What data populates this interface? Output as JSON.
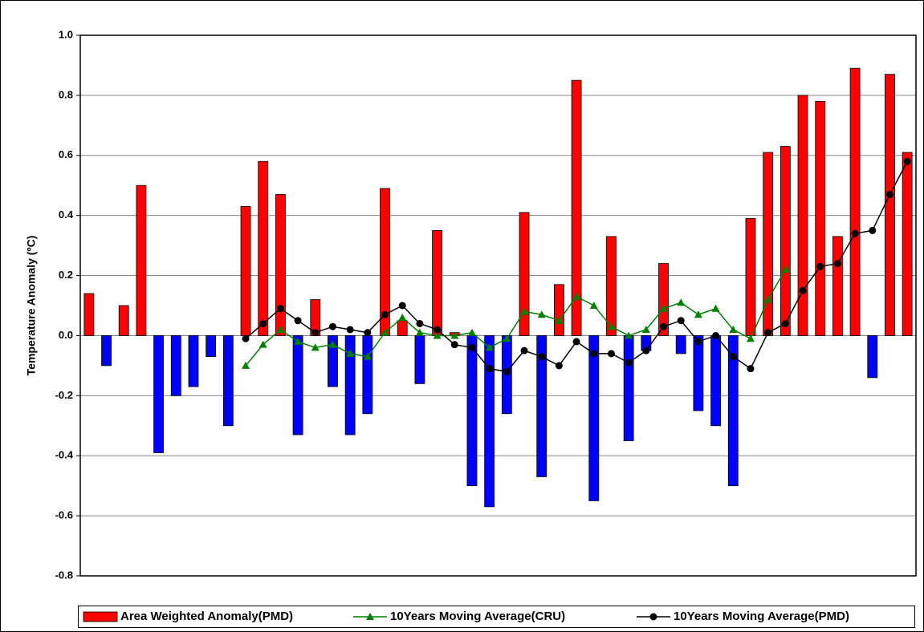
{
  "chart_data": {
    "type": "bar",
    "y_label": "Temperature Anomaly (ºC)",
    "categories": [
      null,
      null,
      null,
      null,
      null,
      null,
      null,
      null,
      null,
      null,
      null,
      null,
      null,
      null,
      null,
      null,
      null,
      null,
      null,
      null,
      null,
      null,
      null,
      null,
      null,
      null,
      null,
      null,
      null,
      null,
      null,
      null,
      null,
      null,
      null,
      null,
      null,
      null,
      null,
      null,
      null,
      null,
      null,
      null,
      null,
      null,
      null,
      null
    ],
    "series": [
      {
        "name": "Area Weighted Anomaly(PMD)",
        "type": "bar",
        "color": "#ff0000",
        "negative_color": "#0000ff",
        "values": [
          0.14,
          -0.1,
          0.1,
          0.5,
          -0.39,
          -0.2,
          -0.17,
          -0.07,
          -0.3,
          0.43,
          0.58,
          0.47,
          -0.33,
          0.12,
          -0.17,
          -0.33,
          -0.26,
          0.49,
          0.05,
          -0.16,
          0.35,
          0.01,
          -0.5,
          -0.57,
          -0.26,
          0.41,
          -0.47,
          0.17,
          0.85,
          -0.55,
          0.33,
          -0.35,
          -0.05,
          0.24,
          -0.06,
          -0.25,
          -0.3,
          -0.5,
          0.39,
          0.61,
          0.63,
          0.8,
          0.78,
          0.33,
          0.89,
          -0.14,
          0.87,
          0.61
        ]
      },
      {
        "name": "10Years Moving Average(CRU)",
        "type": "line",
        "marker": "triangle",
        "color": "#008000",
        "values": [
          null,
          null,
          null,
          null,
          null,
          null,
          null,
          null,
          null,
          -0.1,
          -0.03,
          0.02,
          -0.02,
          -0.04,
          -0.03,
          -0.06,
          -0.07,
          0.01,
          0.06,
          0.01,
          0.0,
          0.0,
          0.01,
          -0.04,
          -0.01,
          0.08,
          0.07,
          0.05,
          0.13,
          0.1,
          0.03,
          0.0,
          0.02,
          0.09,
          0.11,
          0.07,
          0.09,
          0.02,
          -0.01,
          0.12,
          0.22,
          null,
          null,
          null,
          null,
          null,
          null,
          null
        ]
      },
      {
        "name": "10Years Moving Average(PMD)",
        "type": "line",
        "marker": "circle",
        "color": "#000000",
        "values": [
          null,
          null,
          null,
          null,
          null,
          null,
          null,
          null,
          null,
          -0.01,
          0.04,
          0.09,
          0.05,
          0.01,
          0.03,
          0.02,
          0.01,
          0.07,
          0.1,
          0.04,
          0.02,
          -0.03,
          -0.04,
          -0.11,
          -0.12,
          -0.05,
          -0.07,
          -0.1,
          -0.02,
          -0.06,
          -0.06,
          -0.09,
          -0.05,
          0.03,
          0.05,
          -0.02,
          0.0,
          -0.07,
          -0.11,
          0.01,
          0.04,
          0.15,
          0.23,
          0.24,
          0.34,
          0.35,
          0.47,
          0.58
        ]
      }
    ],
    "ylim": [
      -0.8,
      1.0
    ],
    "yticks": [
      -0.8,
      -0.6,
      -0.4,
      -0.2,
      {
        "value": 0,
        "label": "0.0"
      },
      0.2,
      0.4,
      0.6,
      0.8,
      {
        "value": 1,
        "label": "1.0"
      }
    ],
    "grid": true,
    "legend": "bottom"
  }
}
